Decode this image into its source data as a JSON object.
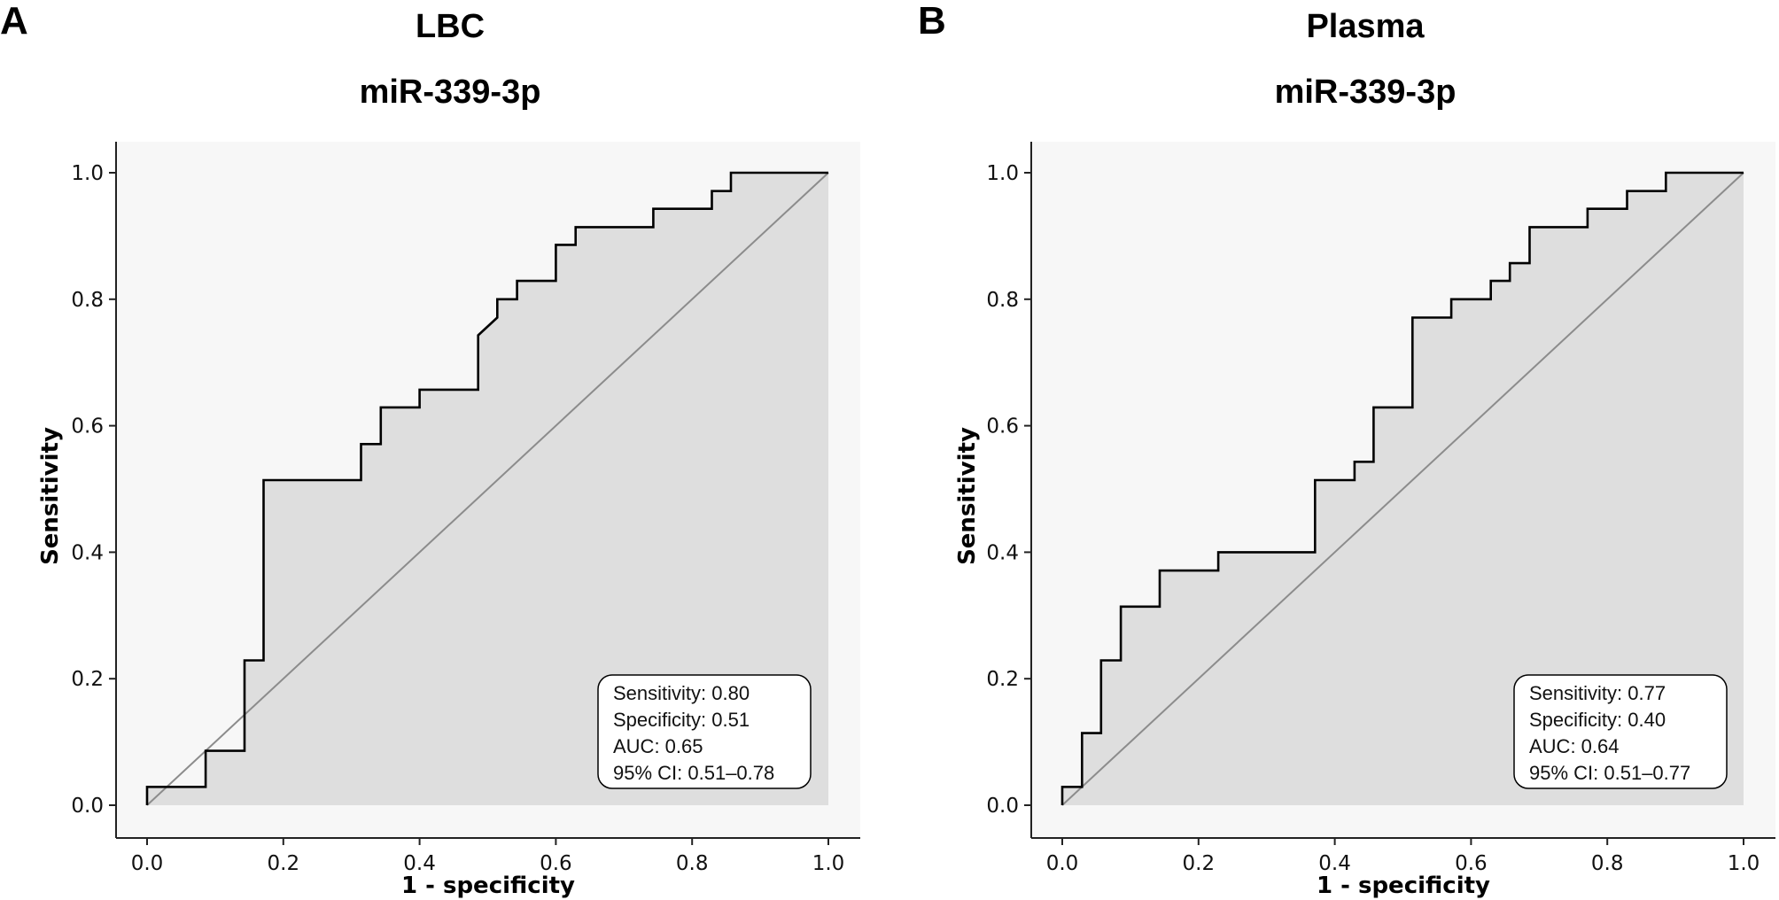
{
  "chart_data": [
    {
      "type": "line",
      "panel": "A",
      "title": "LBC",
      "subtitle": "miR-339-3p",
      "xlabel": "1 - specificity",
      "ylabel": "Sensitivity",
      "xlim": [
        0,
        1
      ],
      "ylim": [
        0,
        1
      ],
      "xticks": [
        "0.0",
        "0.2",
        "0.4",
        "0.6",
        "0.8",
        "1.0"
      ],
      "yticks": [
        "0.0",
        "0.2",
        "0.4",
        "0.6",
        "0.8",
        "1.0"
      ],
      "diagonal": true,
      "roc": [
        [
          0,
          0
        ],
        [
          0,
          0.029
        ],
        [
          0.086,
          0.029
        ],
        [
          0.086,
          0.086
        ],
        [
          0.143,
          0.086
        ],
        [
          0.143,
          0.229
        ],
        [
          0.171,
          0.229
        ],
        [
          0.171,
          0.514
        ],
        [
          0.314,
          0.514
        ],
        [
          0.314,
          0.571
        ],
        [
          0.343,
          0.571
        ],
        [
          0.343,
          0.629
        ],
        [
          0.4,
          0.629
        ],
        [
          0.4,
          0.657
        ],
        [
          0.486,
          0.657
        ],
        [
          0.486,
          0.743
        ],
        [
          0.514,
          0.771
        ],
        [
          0.514,
          0.8
        ],
        [
          0.543,
          0.8
        ],
        [
          0.543,
          0.829
        ],
        [
          0.6,
          0.829
        ],
        [
          0.6,
          0.886
        ],
        [
          0.629,
          0.886
        ],
        [
          0.629,
          0.914
        ],
        [
          0.743,
          0.914
        ],
        [
          0.743,
          0.943
        ],
        [
          0.829,
          0.943
        ],
        [
          0.829,
          0.971
        ],
        [
          0.857,
          0.971
        ],
        [
          0.857,
          1.0
        ],
        [
          1.0,
          1.0
        ]
      ],
      "stats": [
        "Sensitivity: 0.80",
        "Specificity: 0.51",
        "AUC: 0.65",
        "95% CI: 0.51–0.78"
      ]
    },
    {
      "type": "line",
      "panel": "B",
      "title": "Plasma",
      "subtitle": "miR-339-3p",
      "xlabel": "1 - specificity",
      "ylabel": "Sensitivity",
      "xlim": [
        0,
        1
      ],
      "ylim": [
        0,
        1
      ],
      "xticks": [
        "0.0",
        "0.2",
        "0.4",
        "0.6",
        "0.8",
        "1.0"
      ],
      "yticks": [
        "0.0",
        "0.2",
        "0.4",
        "0.6",
        "0.8",
        "1.0"
      ],
      "diagonal": true,
      "roc": [
        [
          0,
          0
        ],
        [
          0,
          0.029
        ],
        [
          0.029,
          0.029
        ],
        [
          0.029,
          0.114
        ],
        [
          0.057,
          0.114
        ],
        [
          0.057,
          0.229
        ],
        [
          0.086,
          0.229
        ],
        [
          0.086,
          0.314
        ],
        [
          0.143,
          0.314
        ],
        [
          0.143,
          0.371
        ],
        [
          0.229,
          0.371
        ],
        [
          0.229,
          0.4
        ],
        [
          0.371,
          0.4
        ],
        [
          0.371,
          0.514
        ],
        [
          0.429,
          0.514
        ],
        [
          0.429,
          0.543
        ],
        [
          0.457,
          0.543
        ],
        [
          0.457,
          0.629
        ],
        [
          0.514,
          0.629
        ],
        [
          0.514,
          0.771
        ],
        [
          0.571,
          0.771
        ],
        [
          0.571,
          0.8
        ],
        [
          0.629,
          0.8
        ],
        [
          0.629,
          0.829
        ],
        [
          0.657,
          0.829
        ],
        [
          0.657,
          0.857
        ],
        [
          0.686,
          0.857
        ],
        [
          0.686,
          0.914
        ],
        [
          0.771,
          0.914
        ],
        [
          0.771,
          0.943
        ],
        [
          0.829,
          0.943
        ],
        [
          0.829,
          0.971
        ],
        [
          0.886,
          0.971
        ],
        [
          0.886,
          1.0
        ],
        [
          1.0,
          1.0
        ]
      ],
      "stats": [
        "Sensitivity: 0.77",
        "Specificity: 0.40",
        "AUC: 0.64",
        "95% CI: 0.51–0.77"
      ]
    }
  ]
}
